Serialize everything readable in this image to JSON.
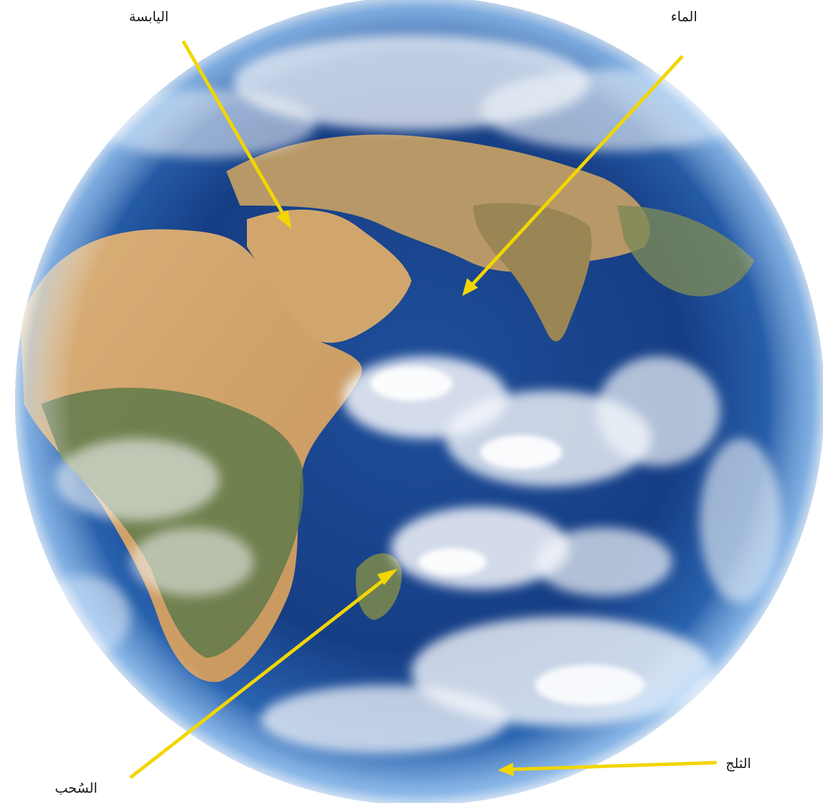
{
  "labels": {
    "land": "اليابسة",
    "water": "الماء",
    "clouds": "السُحب",
    "snow": "الثلج"
  },
  "colors": {
    "arrow": "#f2d600",
    "ocean_light": "#3f82c8",
    "ocean_deep": "#0d2f6e",
    "land_desert": "#d4a86a",
    "land_green": "#5f7a4a",
    "cloud": "#f4f6fa"
  }
}
